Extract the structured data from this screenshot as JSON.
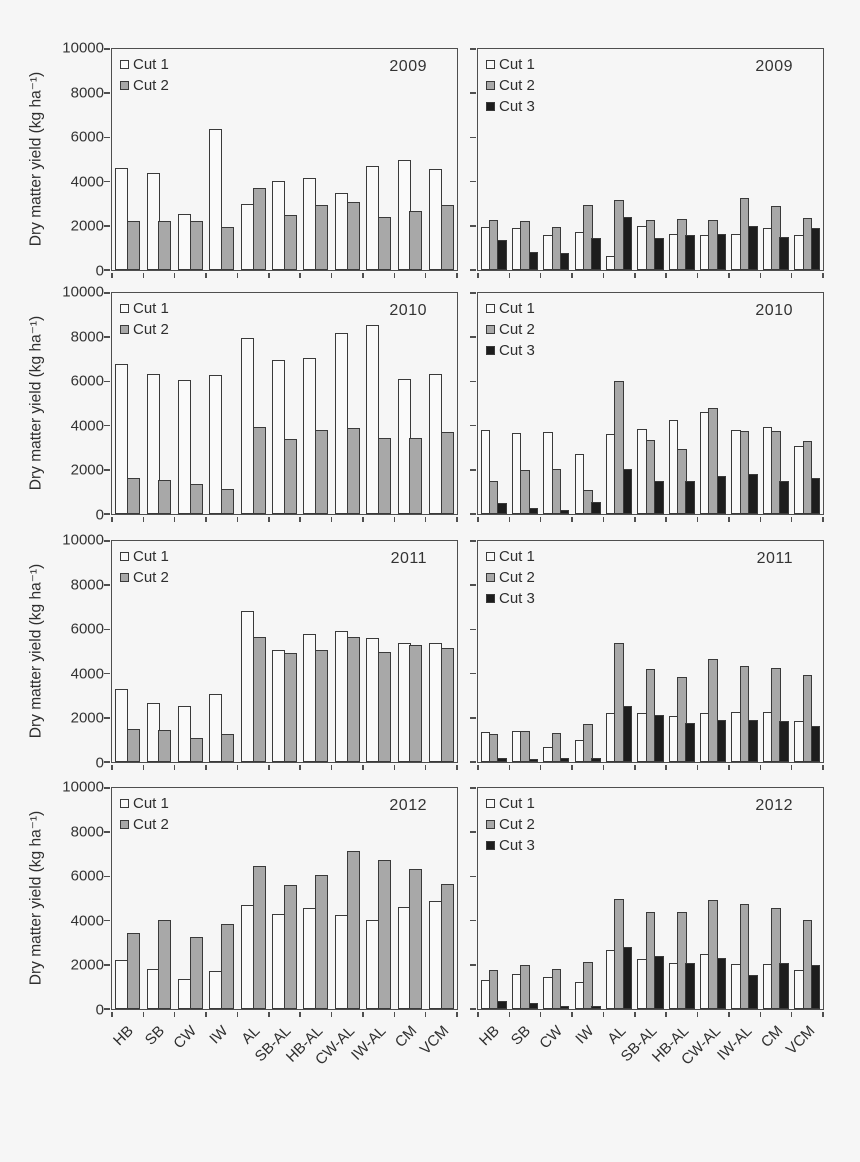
{
  "figure": {
    "y_axis_title": "Dry matter yield (kg ha⁻¹)",
    "y_ticks": [
      0,
      2000,
      4000,
      6000,
      8000,
      10000
    ],
    "categories": [
      "HB",
      "SB",
      "CW",
      "IW",
      "AL",
      "SB-AL",
      "HB-AL",
      "CW-AL",
      "IW-AL",
      "CM",
      "VCM"
    ],
    "colors": {
      "cut1": "#fafafa",
      "cut2": "#a8a8a8",
      "cut3": "#1d1d1d",
      "border": "#3a3a3a",
      "axis": "#4f4f4f",
      "background": "#f6f6f6"
    }
  },
  "chart_data": [
    {
      "type": "bar",
      "year": "2009",
      "column": "left",
      "ylim": [
        0,
        10000
      ],
      "grid": false,
      "legend": [
        "Cut 1",
        "Cut 2"
      ],
      "legend_position": "top-left",
      "categories": [
        "HB",
        "SB",
        "CW",
        "IW",
        "AL",
        "SB-AL",
        "HB-AL",
        "CW-AL",
        "IW-AL",
        "CM",
        "VCM"
      ],
      "series": [
        {
          "name": "Cut 1",
          "values": [
            4600,
            4400,
            2550,
            6400,
            3000,
            4050,
            4150,
            3500,
            4700,
            5000,
            4550
          ]
        },
        {
          "name": "Cut 2",
          "values": [
            2200,
            2200,
            2200,
            1950,
            3700,
            2500,
            2950,
            3100,
            2400,
            2650,
            2950
          ]
        }
      ]
    },
    {
      "type": "bar",
      "year": "2009",
      "column": "right",
      "ylim": [
        0,
        10000
      ],
      "grid": false,
      "legend": [
        "Cut 1",
        "Cut 2",
        "Cut 3"
      ],
      "legend_position": "top-left",
      "categories": [
        "HB",
        "SB",
        "CW",
        "IW",
        "AL",
        "SB-AL",
        "HB-AL",
        "CW-AL",
        "IW-AL",
        "CM",
        "VCM"
      ],
      "series": [
        {
          "name": "Cut 1",
          "values": [
            1950,
            1900,
            1600,
            1700,
            650,
            2000,
            1650,
            1600,
            1650,
            1900,
            1600
          ]
        },
        {
          "name": "Cut 2",
          "values": [
            2250,
            2200,
            1950,
            2950,
            3150,
            2250,
            2300,
            2250,
            3250,
            2900,
            2350
          ]
        },
        {
          "name": "Cut 3",
          "values": [
            1350,
            800,
            750,
            1450,
            2400,
            1450,
            1600,
            1650,
            2000,
            1500,
            1900
          ]
        }
      ]
    },
    {
      "type": "bar",
      "year": "2010",
      "column": "left",
      "ylim": [
        0,
        10000
      ],
      "grid": false,
      "legend": [
        "Cut 1",
        "Cut 2"
      ],
      "legend_position": "top-left",
      "categories": [
        "HB",
        "SB",
        "CW",
        "IW",
        "AL",
        "SB-AL",
        "HB-AL",
        "CW-AL",
        "IW-AL",
        "CM",
        "VCM"
      ],
      "series": [
        {
          "name": "Cut 1",
          "values": [
            6800,
            6350,
            6050,
            6300,
            7950,
            6950,
            7050,
            8200,
            8550,
            6100,
            6350
          ]
        },
        {
          "name": "Cut 2",
          "values": [
            1650,
            1550,
            1350,
            1150,
            3950,
            3400,
            3800,
            3900,
            3450,
            3450,
            3700
          ]
        }
      ]
    },
    {
      "type": "bar",
      "year": "2010",
      "column": "right",
      "ylim": [
        0,
        10000
      ],
      "grid": false,
      "legend": [
        "Cut 1",
        "Cut 2",
        "Cut 3"
      ],
      "legend_position": "top-left",
      "categories": [
        "HB",
        "SB",
        "CW",
        "IW",
        "AL",
        "SB-AL",
        "HB-AL",
        "CW-AL",
        "IW-AL",
        "CM",
        "VCM"
      ],
      "series": [
        {
          "name": "Cut 1",
          "values": [
            3800,
            3650,
            3700,
            2700,
            3600,
            3850,
            4250,
            4600,
            3800,
            3950,
            3100
          ]
        },
        {
          "name": "Cut 2",
          "values": [
            1500,
            2000,
            2050,
            1100,
            6000,
            3350,
            2950,
            4800,
            3750,
            3750,
            3300
          ]
        },
        {
          "name": "Cut 3",
          "values": [
            500,
            280,
            200,
            550,
            2050,
            1500,
            1500,
            1700,
            1800,
            1500,
            1650
          ]
        }
      ]
    },
    {
      "type": "bar",
      "year": "2011",
      "column": "left",
      "ylim": [
        0,
        10000
      ],
      "grid": false,
      "legend": [
        "Cut 1",
        "Cut 2"
      ],
      "legend_position": "top-left",
      "categories": [
        "HB",
        "SB",
        "CW",
        "IW",
        "AL",
        "SB-AL",
        "HB-AL",
        "CW-AL",
        "IW-AL",
        "CM",
        "VCM"
      ],
      "series": [
        {
          "name": "Cut 1",
          "values": [
            3300,
            2650,
            2550,
            3100,
            6850,
            5050,
            5800,
            5950,
            5600,
            5400,
            5400
          ]
        },
        {
          "name": "Cut 2",
          "values": [
            1500,
            1450,
            1100,
            1250,
            5650,
            4950,
            5050,
            5650,
            5000,
            5300,
            5150
          ]
        }
      ]
    },
    {
      "type": "bar",
      "year": "2011",
      "column": "right",
      "ylim": [
        0,
        10000
      ],
      "grid": false,
      "legend": [
        "Cut 1",
        "Cut 2",
        "Cut 3"
      ],
      "legend_position": "top-left",
      "categories": [
        "HB",
        "SB",
        "CW",
        "IW",
        "AL",
        "SB-AL",
        "HB-AL",
        "CW-AL",
        "IW-AL",
        "CM",
        "VCM"
      ],
      "series": [
        {
          "name": "Cut 1",
          "values": [
            1350,
            1400,
            700,
            1000,
            2200,
            2200,
            2100,
            2200,
            2250,
            2250,
            1850
          ]
        },
        {
          "name": "Cut 2",
          "values": [
            1250,
            1400,
            1300,
            1700,
            5400,
            4200,
            3850,
            4650,
            4350,
            4250,
            3950
          ]
        },
        {
          "name": "Cut 3",
          "values": [
            200,
            150,
            200,
            200,
            2550,
            2150,
            1750,
            1900,
            1900,
            1850,
            1650
          ]
        }
      ]
    },
    {
      "type": "bar",
      "year": "2012",
      "column": "left",
      "ylim": [
        0,
        10000
      ],
      "grid": false,
      "legend": [
        "Cut 1",
        "Cut 2"
      ],
      "legend_position": "top-left",
      "categories": [
        "HB",
        "SB",
        "CW",
        "IW",
        "AL",
        "SB-AL",
        "HB-AL",
        "CW-AL",
        "IW-AL",
        "CM",
        "VCM"
      ],
      "series": [
        {
          "name": "Cut 1",
          "values": [
            2200,
            1800,
            1380,
            1700,
            4700,
            4300,
            4550,
            4250,
            4050,
            4600,
            4900
          ]
        },
        {
          "name": "Cut 2",
          "values": [
            3450,
            4050,
            3250,
            3850,
            6450,
            5600,
            6050,
            7150,
            6750,
            6350,
            5650
          ]
        }
      ]
    },
    {
      "type": "bar",
      "year": "2012",
      "column": "right",
      "ylim": [
        0,
        10000
      ],
      "grid": false,
      "legend": [
        "Cut 1",
        "Cut 2",
        "Cut 3"
      ],
      "legend_position": "top-left",
      "categories": [
        "HB",
        "SB",
        "CW",
        "IW",
        "AL",
        "SB-AL",
        "HB-AL",
        "CW-AL",
        "IW-AL",
        "CM",
        "VCM"
      ],
      "series": [
        {
          "name": "Cut 1",
          "values": [
            1300,
            1600,
            1450,
            1200,
            2650,
            2250,
            2100,
            2500,
            2050,
            2050,
            1750
          ]
        },
        {
          "name": "Cut 2",
          "values": [
            1750,
            2000,
            1800,
            2150,
            5000,
            4400,
            4400,
            4950,
            4750,
            4550,
            4050
          ]
        },
        {
          "name": "Cut 3",
          "values": [
            350,
            250,
            120,
            150,
            2800,
            2400,
            2100,
            2300,
            1550,
            2100,
            2000
          ]
        }
      ]
    }
  ]
}
